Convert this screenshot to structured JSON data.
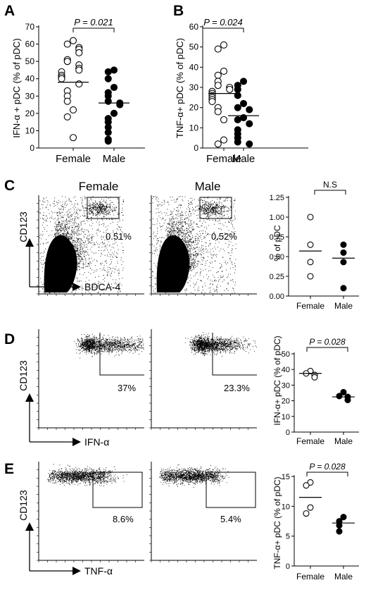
{
  "panels": {
    "A": {
      "letter": "A",
      "ylabel": "IFN-α + pDC (% of pDC)",
      "pvalue": "P = 0.021"
    },
    "B": {
      "letter": "B",
      "ylabel": "TNF-α+ pDC (% of pDC)",
      "pvalue": "P = 0.024"
    },
    "C": {
      "letter": "C",
      "col_female": "Female",
      "col_male": "Male",
      "yaxis": "CD123",
      "xaxis": "BDCA-4",
      "female_pct": "0.51%",
      "male_pct": "0.52%",
      "scatter_ylabel": "% of pDC",
      "sig": "N.S"
    },
    "D": {
      "letter": "D",
      "yaxis": "CD123",
      "xaxis": "IFN-α",
      "female_pct": "37%",
      "male_pct": "23.3%",
      "scatter_ylabel": "IFN-α+ pDC (% of pDC)",
      "pvalue": "P = 0.028"
    },
    "E": {
      "letter": "E",
      "yaxis": "CD123",
      "xaxis": "TNF-α",
      "female_pct": "8.6%",
      "male_pct": "5.4%",
      "scatter_ylabel": "TNF-α+ pDC (% of pDC)",
      "pvalue": "P = 0.028"
    }
  },
  "chart_data": [
    {
      "id": "A",
      "type": "scatter",
      "categories": [
        "Female",
        "Male"
      ],
      "ylim": [
        0,
        70
      ],
      "yticks": [
        0,
        10,
        20,
        30,
        40,
        50,
        60,
        70
      ],
      "series": [
        {
          "marker": "open",
          "values": [
            62,
            60,
            58,
            57,
            55,
            51,
            50,
            48,
            46,
            45,
            44,
            42,
            41,
            40,
            37,
            33,
            30,
            27,
            22,
            18,
            6
          ],
          "mean": 38
        },
        {
          "marker": "filled",
          "values": [
            45,
            44,
            40,
            35,
            32,
            30,
            27,
            26,
            25,
            20,
            17,
            15,
            12,
            9,
            5,
            4
          ],
          "mean": 26
        }
      ]
    },
    {
      "id": "B",
      "type": "scatter",
      "categories": [
        "Female",
        "Male"
      ],
      "ylim": [
        0,
        60
      ],
      "yticks": [
        0,
        10,
        20,
        30,
        40,
        50,
        60
      ],
      "series": [
        {
          "marker": "open",
          "values": [
            51,
            49,
            38,
            36,
            33,
            31,
            30,
            29,
            28,
            27,
            26,
            25,
            24,
            23,
            20,
            18,
            14,
            4,
            2
          ],
          "mean": 27
        },
        {
          "marker": "filled",
          "values": [
            33,
            31,
            29,
            26,
            22,
            20,
            19,
            15,
            14,
            12,
            9,
            7,
            5,
            3,
            2
          ],
          "mean": 16
        }
      ]
    },
    {
      "id": "C",
      "type": "scatter",
      "categories": [
        "Female",
        "Male"
      ],
      "ylim": [
        0,
        1.25
      ],
      "yticks": [
        0.0,
        0.25,
        0.5,
        0.75,
        1.0,
        1.25
      ],
      "series": [
        {
          "marker": "open",
          "values": [
            1.0,
            0.65,
            0.43,
            0.25
          ],
          "mean": 0.57
        },
        {
          "marker": "filled",
          "values": [
            0.65,
            0.55,
            0.43,
            0.1
          ],
          "mean": 0.48
        }
      ]
    },
    {
      "id": "D",
      "type": "scatter",
      "categories": [
        "Female",
        "Male"
      ],
      "ylim": [
        0,
        50
      ],
      "yticks": [
        0,
        10,
        20,
        30,
        40,
        50
      ],
      "series": [
        {
          "marker": "open",
          "values": [
            39,
            37.5,
            36.5,
            35
          ],
          "mean": 37.5
        },
        {
          "marker": "filled",
          "values": [
            25.5,
            23,
            22.5,
            20.5
          ],
          "mean": 22.5
        }
      ]
    },
    {
      "id": "E",
      "type": "scatter",
      "categories": [
        "Female",
        "Male"
      ],
      "ylim": [
        0,
        15
      ],
      "yticks": [
        0,
        5,
        10,
        15
      ],
      "series": [
        {
          "marker": "open",
          "values": [
            14,
            13.5,
            9.8,
            8.8
          ],
          "mean": 11.5
        },
        {
          "marker": "filled",
          "values": [
            8.2,
            7.5,
            6.8,
            5.8
          ],
          "mean": 7.2
        }
      ]
    }
  ]
}
